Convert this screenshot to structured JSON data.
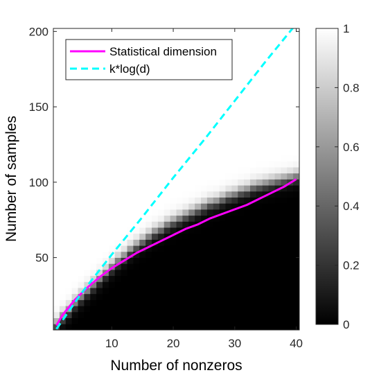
{
  "chart_data": {
    "type": "heatmap",
    "xlabel": "Number of nonzeros",
    "ylabel": "Number of samples",
    "xlim": [
      0.5,
      40.5
    ],
    "ylim": [
      2,
      202
    ],
    "xticks": [
      "10",
      "20",
      "30",
      "40"
    ],
    "xtick_values": [
      10,
      20,
      30,
      40
    ],
    "yticks": [
      "50",
      "100",
      "150",
      "200"
    ],
    "ytick_values": [
      50,
      100,
      150,
      200
    ],
    "heatmap": {
      "x_range": [
        1,
        40
      ],
      "y_range": [
        4,
        200
      ],
      "cell_height": 4,
      "colormap": "gray",
      "value_range": [
        0,
        1
      ],
      "description_transition_center_samples": [
        6,
        11,
        15,
        20,
        24,
        28,
        32,
        36,
        40,
        44,
        48,
        51,
        55,
        58,
        61,
        64,
        67,
        69,
        72,
        74,
        76,
        78,
        80,
        82,
        84,
        86,
        87,
        89,
        91,
        92,
        94,
        95,
        97,
        98,
        99,
        100,
        101,
        102,
        103,
        104
      ],
      "transition_width": 6
    },
    "series": [
      {
        "name": "Statistical dimension",
        "style": "solid",
        "color": "#ff00ff",
        "x": [
          1,
          2,
          4,
          6,
          8,
          10,
          12,
          14,
          16,
          18,
          20,
          22,
          24,
          26,
          28,
          30,
          32,
          34,
          36,
          38,
          40
        ],
        "y": [
          5,
          12,
          22,
          30,
          37,
          43,
          48,
          53,
          57,
          61,
          65,
          69,
          72,
          76,
          79,
          82,
          85,
          89,
          93,
          97,
          102
        ]
      },
      {
        "name": "k*log(d)",
        "style": "dashed",
        "color": "#00ffff",
        "x": [
          1,
          5,
          10,
          15,
          20,
          25,
          30,
          35,
          40
        ],
        "y": [
          2.6,
          26,
          52,
          77,
          103,
          128,
          154,
          180,
          205
        ]
      }
    ],
    "colorbar": {
      "range": [
        0,
        1
      ],
      "ticks": [
        "0",
        "0.2",
        "0.4",
        "0.6",
        "0.8",
        "1"
      ],
      "tick_values": [
        0,
        0.2,
        0.4,
        0.6,
        0.8,
        1
      ]
    },
    "legend": {
      "placement": "top-left",
      "entries": [
        "Statistical dimension",
        "k*log(d)"
      ]
    }
  }
}
